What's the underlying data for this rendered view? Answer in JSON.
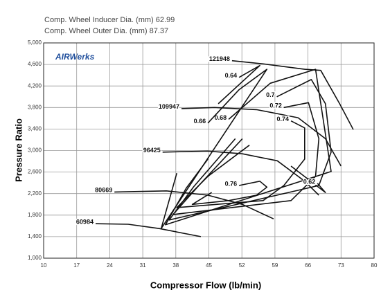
{
  "header": [
    "Comp. Wheel Inducer Dia. (mm) 62.99",
    "Comp. Wheel Outer Dia. (mm) 87.37"
  ],
  "logo": "AIRWerks",
  "chart_data": {
    "type": "line",
    "color": "#111111",
    "grid": true,
    "x_label": "Compressor Flow (lb/min)",
    "y_label": "Pressure Ratio",
    "xlim": [
      10,
      80
    ],
    "xticks": [
      10,
      17,
      24,
      31,
      38,
      45,
      52,
      59,
      66,
      73,
      80
    ],
    "ylim": [
      1.0,
      5.0
    ],
    "yticks": [
      {
        "value": 1.0,
        "label": "1,000"
      },
      {
        "value": 1.4,
        "label": "1,400"
      },
      {
        "value": 1.8,
        "label": "1,800"
      },
      {
        "value": 2.2,
        "label": "2,200"
      },
      {
        "value": 2.6,
        "label": "2,600"
      },
      {
        "value": 3.0,
        "label": "3,000"
      },
      {
        "value": 3.4,
        "label": "3,400"
      },
      {
        "value": 3.8,
        "label": "3,800"
      },
      {
        "value": 4.2,
        "label": "4,200"
      },
      {
        "value": 4.6,
        "label": "4,600"
      },
      {
        "value": 5.0,
        "label": "5,000"
      }
    ],
    "series": [
      {
        "name": "60984",
        "x": [
          21.0,
          27.9,
          34.5,
          43.3
        ],
        "values": [
          1.64,
          1.63,
          1.55,
          1.4
        ]
      },
      {
        "name": "80669",
        "x": [
          25.0,
          36.0,
          44.8,
          52.1,
          58.7
        ],
        "values": [
          2.23,
          2.25,
          2.17,
          2.0,
          1.73
        ]
      },
      {
        "name": "96425",
        "x": [
          35.2,
          44.8,
          52.1,
          59.5,
          65.3,
          68.3
        ],
        "values": [
          2.97,
          2.99,
          2.94,
          2.81,
          2.43,
          2.17
        ]
      },
      {
        "name": "109947",
        "x": [
          39.2,
          46.2,
          55.1,
          63.9,
          69.7,
          73.0
        ],
        "values": [
          3.78,
          3.8,
          3.76,
          3.61,
          3.22,
          2.71
        ]
      },
      {
        "name": "121948",
        "x": [
          49.9,
          56.5,
          65.3,
          68.7,
          72.7,
          75.6
        ],
        "values": [
          4.67,
          4.61,
          4.51,
          4.49,
          3.87,
          3.39
        ]
      },
      {
        "name": "0.76",
        "x": [
          51.4,
          55.8,
          57.3,
          55.1,
          49.2,
          41.5,
          45.6
        ],
        "values": [
          2.35,
          2.43,
          2.32,
          2.17,
          2.07,
          2.0,
          2.22
        ]
      },
      {
        "name": "0.74",
        "x": [
          62.4,
          65.3,
          65.3,
          60.9,
          56.5,
          38.2,
          44.8,
          53.6
        ],
        "values": [
          3.55,
          3.42,
          2.84,
          2.35,
          2.07,
          1.94,
          2.52,
          3.1
        ]
      },
      {
        "name": "0.72",
        "x": [
          60.9,
          66.1,
          68.3,
          67.6,
          62.4,
          37.4,
          43.3,
          52.1
        ],
        "values": [
          3.8,
          3.89,
          3.22,
          2.52,
          2.07,
          1.81,
          2.39,
          3.22
        ]
      },
      {
        "name": "0.7",
        "x": [
          59.4,
          66.7,
          69.7,
          70.9,
          68.3,
          36.6,
          41.8,
          50.6
        ],
        "values": [
          4.0,
          4.32,
          3.87,
          2.97,
          2.35,
          1.71,
          2.33,
          3.22
        ]
      },
      {
        "name": "0.68",
        "x": [
          49.2,
          58.0,
          67.6,
          70.9,
          35.8,
          40.2,
          44.8
        ],
        "values": [
          3.58,
          4.25,
          4.51,
          2.61,
          1.62,
          2.3,
          2.84
        ]
      },
      {
        "name": "0.66",
        "x": [
          44.8,
          51.4,
          57.3,
          34.9,
          38.2
        ],
        "values": [
          3.51,
          4.13,
          4.51,
          1.55,
          2.58
        ]
      },
      {
        "name": "0.64",
        "x": [
          51.4,
          55.8,
          47.0
        ],
        "values": [
          4.36,
          4.58,
          3.87
        ]
      },
      {
        "name": "0.62",
        "x": [
          68.0,
          69.7,
          62.4
        ],
        "values": [
          2.39,
          2.22,
          2.71
        ]
      }
    ]
  }
}
